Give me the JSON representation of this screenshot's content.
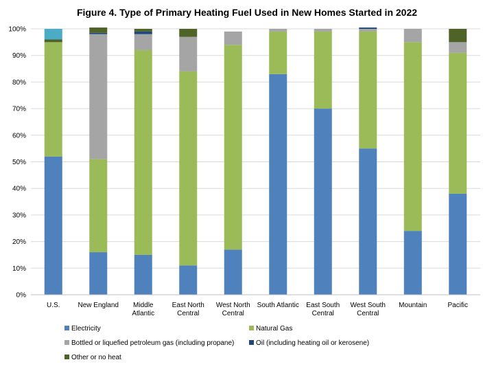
{
  "chart_data": {
    "type": "bar",
    "stacked": true,
    "title": "Figure 4. Type of Primary Heating Fuel Used in New Homes Started in 2022",
    "xlabel": "",
    "ylabel": "",
    "ylim": [
      0,
      100
    ],
    "yticks": [
      "0%",
      "10%",
      "20%",
      "30%",
      "40%",
      "50%",
      "60%",
      "70%",
      "80%",
      "90%",
      "100%"
    ],
    "categories": [
      [
        "U.S."
      ],
      [
        "New England"
      ],
      [
        "Middle",
        "Atlantic"
      ],
      [
        "East North",
        "Central"
      ],
      [
        "West North",
        "Central"
      ],
      [
        "South Atlantic"
      ],
      [
        "East South",
        "Central"
      ],
      [
        "West South",
        "Central"
      ],
      [
        "Mountain"
      ],
      [
        "Pacific"
      ]
    ],
    "series": [
      {
        "name": "Electricity",
        "color": "#4f81bd",
        "values": [
          52,
          16,
          15,
          11,
          17,
          83,
          70,
          55,
          24,
          38
        ]
      },
      {
        "name": "Natural Gas",
        "color": "#9bbb59",
        "values": [
          43,
          35,
          77,
          73,
          77,
          16,
          29,
          44,
          71,
          53
        ]
      },
      {
        "name": "Bottled or liquefied petroleum gas (including propane)",
        "color": "#a5a5a5",
        "values": [
          0,
          47,
          6,
          13,
          5,
          1,
          1,
          1,
          5,
          4
        ]
      },
      {
        "name": "Oil (including heating oil or kerosene)",
        "color": "#1f497d",
        "values": [
          0,
          0.5,
          1,
          0,
          0,
          0,
          0,
          0.5,
          0,
          0
        ]
      },
      {
        "name": "Other or no heat",
        "color": "#4f6228",
        "values": [
          1,
          2,
          1,
          3,
          0,
          0,
          0,
          0,
          0,
          5
        ]
      },
      {
        "name": "",
        "color": "#4bacc6",
        "values": [
          4,
          0,
          0,
          0,
          0,
          0,
          0,
          0,
          0,
          0
        ]
      }
    ],
    "legend_position": "bottom",
    "grid": true
  }
}
